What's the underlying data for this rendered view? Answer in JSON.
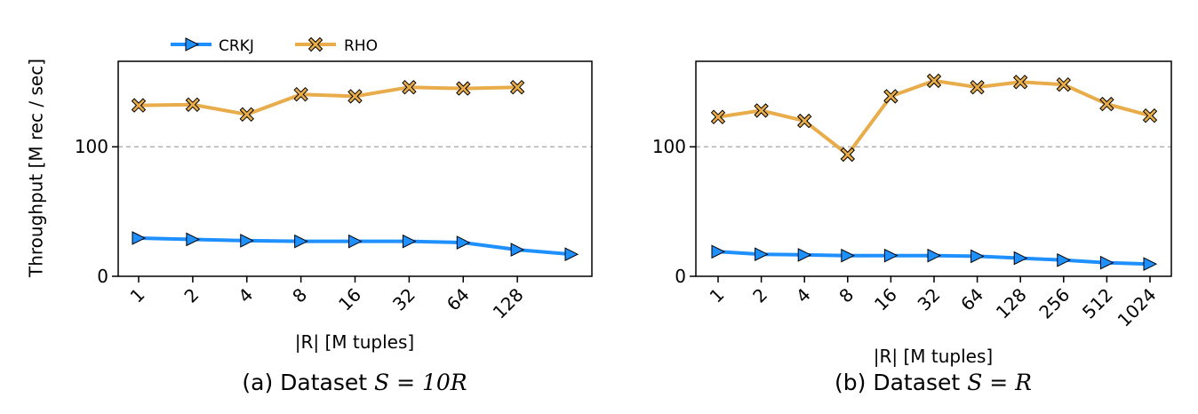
{
  "colors": {
    "crkj": "#1e90ff",
    "rho": "#e8ac4a",
    "reference_line": "#b3b3b3"
  },
  "legend": [
    {
      "label": "CRKJ",
      "marker": "triangle-right"
    },
    {
      "label": "RHO",
      "marker": "x-filled"
    }
  ],
  "ylabel": "Throughput [M rec / sec]",
  "chart_data": [
    {
      "type": "line",
      "caption_prefix": "(a) Dataset ",
      "caption_math": "S = 10R",
      "xlabel": "|R| [M tuples]",
      "categories": [
        "1",
        "2",
        "4",
        "8",
        "16",
        "32",
        "64",
        "128",
        ""
      ],
      "x_tick_labels": [
        "1",
        "2",
        "4",
        "8",
        "16",
        "32",
        "64",
        "128"
      ],
      "y_ticks": [
        0,
        100
      ],
      "ylim": [
        0,
        166
      ],
      "reference_line": 100,
      "grid": false,
      "legend_position": "top-left, above plot",
      "series": [
        {
          "name": "CRKJ",
          "values": [
            29.5,
            28.5,
            27.5,
            27,
            27,
            27,
            26,
            20.5,
            17
          ]
        },
        {
          "name": "RHO",
          "values": [
            132,
            132.5,
            125,
            140.5,
            139,
            146,
            145,
            146,
            null
          ]
        }
      ]
    },
    {
      "type": "line",
      "caption_prefix": "(b) Dataset ",
      "caption_math": "S = R",
      "xlabel": "|R| [M tuples]",
      "categories": [
        "1",
        "2",
        "4",
        "8",
        "16",
        "32",
        "64",
        "128",
        "256",
        "512",
        "1024"
      ],
      "x_tick_labels": [
        "1",
        "2",
        "4",
        "8",
        "16",
        "32",
        "64",
        "128",
        "256",
        "512",
        "1024"
      ],
      "y_ticks": [
        0,
        100
      ],
      "ylim": [
        0,
        166
      ],
      "reference_line": 100,
      "grid": false,
      "series": [
        {
          "name": "CRKJ",
          "values": [
            19,
            17,
            16.5,
            16,
            16,
            16,
            15.5,
            14,
            12.5,
            10.5,
            9.5
          ]
        },
        {
          "name": "RHO",
          "values": [
            123,
            128,
            120,
            94,
            139,
            151,
            146,
            150,
            148,
            133,
            124
          ]
        }
      ]
    }
  ]
}
